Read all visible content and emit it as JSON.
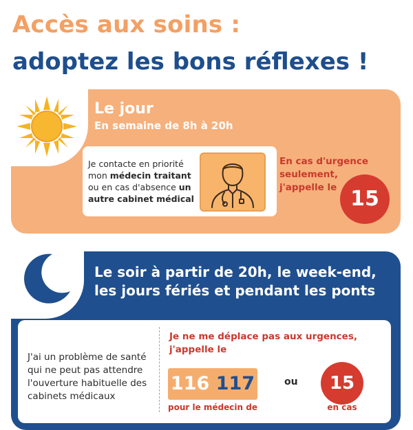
{
  "header": {
    "title_line1": "Accès aux soins :",
    "title_line2": "adoptez les bons réflexes !"
  },
  "day": {
    "title": "Le jour",
    "subtitle": "En semaine de 8h à 20h",
    "text_part1": "Je contacte en priorité mon ",
    "text_bold1": "médecin traitant",
    "text_part2": " ou en cas d'absence ",
    "text_bold2": "un autre cabinet médical",
    "urgent_line1": "En cas d'urgence",
    "urgent_line2": "seulement,",
    "urgent_line3": "j'appelle le",
    "number": "15",
    "icon": "doctor-icon",
    "sun_icon": "sun-icon"
  },
  "night": {
    "title_line1": "Le soir à partir de 20h, le week-end,",
    "title_line2": "les jours fériés et pendant les ponts",
    "problem_text": "J'ai un problème de santé qui ne peut pas attendre l'ouverture habituelle des cabinets médicaux",
    "urgent_line1": "Je ne me déplace pas aux urgences,",
    "urgent_line2": "j'appelle le",
    "number_a": "116",
    "number_b": "117",
    "or_label": "ou",
    "number_15": "15",
    "caption_116": "pour le médecin de",
    "caption_15": "en cas",
    "moon_icon": "moon-icon"
  },
  "colors": {
    "orange_title": "#f3a064",
    "blue_title": "#1e4e8c",
    "day_card": "#f6b07c",
    "night_card": "#1f4f8e",
    "red": "#d63b2f"
  }
}
